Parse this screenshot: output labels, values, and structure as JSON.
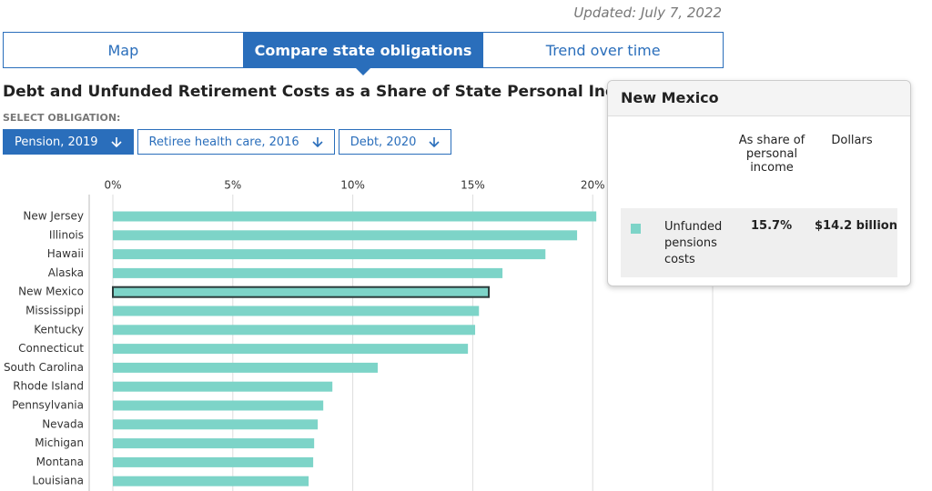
{
  "header": {
    "updated": "Updated: July 7, 2022"
  },
  "tabs": [
    "Map",
    "Compare state obligations",
    "Trend over time"
  ],
  "active_tab": 1,
  "select_label": "SELECT OBLIGATION:",
  "obligations": [
    "Pension, 2019",
    "Retiree health care, 2016",
    "Debt, 2020"
  ],
  "active_obligation": 0,
  "chart_data": {
    "type": "bar",
    "orientation": "horizontal",
    "title": "Debt and Unfunded Retirement Costs as a Share of State Personal Income",
    "categories": [
      "New Jersey",
      "Illinois",
      "Hawaii",
      "Alaska",
      "New Mexico",
      "Mississippi",
      "Kentucky",
      "Connecticut",
      "South Carolina",
      "Rhode Island",
      "Pennsylvania",
      "Nevada",
      "Michigan",
      "Montana",
      "Louisiana"
    ],
    "values": [
      20.15,
      19.35,
      18.03,
      16.24,
      15.67,
      15.26,
      15.1,
      14.8,
      11.04,
      9.15,
      8.77,
      8.54,
      8.39,
      8.35,
      8.16
    ],
    "color": "#7dd4c8",
    "highlight": 4,
    "highlight_stroke": "#2b3a3a",
    "xlim": [
      0,
      25
    ],
    "xticks": [
      {
        "value": 0,
        "label": "0%"
      },
      {
        "value": 5,
        "label": "5%"
      },
      {
        "value": 10,
        "label": "10%"
      },
      {
        "value": 15,
        "label": "15%"
      },
      {
        "value": 20,
        "label": "20%"
      }
    ],
    "grid": true
  },
  "tooltip": {
    "title": "New Mexico",
    "columns": [
      "As share of personal income",
      "Dollars"
    ],
    "row": {
      "label": "Unfunded pensions costs",
      "share": "15.7%",
      "dollars": "$14.2 billion"
    }
  }
}
